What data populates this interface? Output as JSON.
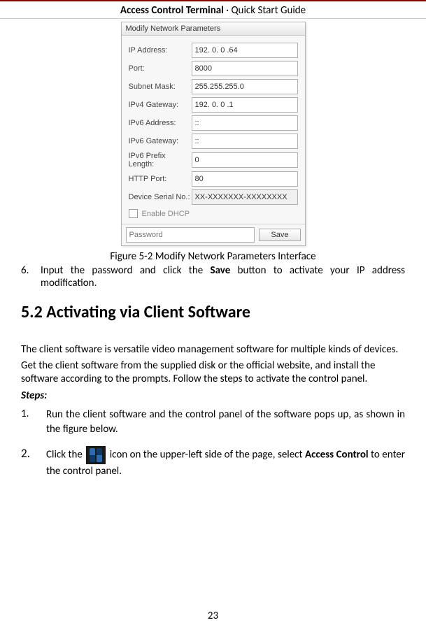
{
  "header": {
    "title_bold": "Access Control Terminal",
    "title_sep": "·",
    "title_rest": "Quick Start Guide"
  },
  "dialog": {
    "title": "Modify Network Parameters",
    "fields": [
      {
        "label": "IP Address:",
        "value": "192. 0. 0 .64",
        "interact": true
      },
      {
        "label": "Port:",
        "value": "8000",
        "interact": true
      },
      {
        "label": "Subnet Mask:",
        "value": "255.255.255.0",
        "interact": true
      },
      {
        "label": "IPv4 Gateway:",
        "value": "192. 0. 0 .1",
        "interact": true
      },
      {
        "label": "IPv6 Address:",
        "value": "::",
        "interact": true
      },
      {
        "label": "IPv6 Gateway:",
        "value": "::",
        "interact": true
      },
      {
        "label": "IPv6 Prefix Length:",
        "value": "0",
        "interact": true
      },
      {
        "label": "HTTP Port:",
        "value": "80",
        "interact": true
      },
      {
        "label": "Device Serial No.:",
        "value": "XX-XXXXXXX-XXXXXXXX",
        "interact": false
      }
    ],
    "dhcp_label": "Enable DHCP",
    "password_placeholder": "Password",
    "save_label": "Save"
  },
  "caption": "Figure 5-2 Modify Network Parameters Interface",
  "step6": {
    "num": "6.",
    "text_a": "Input the password and click the ",
    "bold": "Save",
    "text_b": " button to activate your IP address modification."
  },
  "section": "5.2 Activating via Client Software",
  "para1": "The client software is versatile video management software for multiple kinds of devices.",
  "para2": "Get the client software from the supplied disk or the official website, and install the software according to the prompts. Follow the steps to activate the control panel.",
  "steps_label": "Steps:",
  "step1": {
    "num": "1.",
    "text": "Run the client software and the control panel of the software pops up, as shown in the figure below."
  },
  "step2": {
    "num": "2.",
    "text_a": "Click the ",
    "text_b": " icon on the upper-left side of the page, select ",
    "bold": "Access Control",
    "text_c": " to enter the control panel."
  },
  "page_number": "23"
}
